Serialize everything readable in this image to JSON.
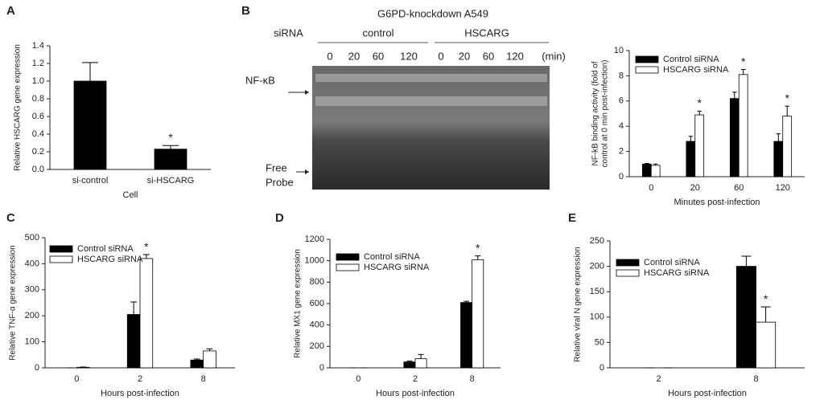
{
  "blot": {
    "panel_label": "B",
    "title": "G6PD-knockdown A549",
    "row_label": "siRNA",
    "groups": [
      "control",
      "HSCARG"
    ],
    "lanes": [
      "0",
      "20",
      "60",
      "120",
      "0",
      "20",
      "60",
      "120"
    ],
    "unit": "(min)",
    "band_label": "NF-κB",
    "probe_label": [
      "Free",
      "Probe"
    ]
  },
  "chart_data": [
    {
      "type": "bar",
      "panel_label": "A",
      "ylabel": "Relative HSCARG gene expression",
      "xlabel": "Cell",
      "categories": [
        "si-control",
        "si-HSCARG"
      ],
      "series": [
        {
          "name": null,
          "color": "#000000",
          "values": [
            1.0,
            0.23
          ],
          "errors": [
            0.21,
            0.04
          ],
          "significance": [
            null,
            "*"
          ]
        }
      ],
      "ylim": [
        0,
        1.4
      ],
      "yticks": [
        {
          "value": 0,
          "label": "0.0"
        },
        {
          "value": 0.2,
          "label": "0.2"
        },
        {
          "value": 0.4,
          "label": "0.4"
        },
        {
          "value": 0.6,
          "label": "0.6"
        },
        {
          "value": 0.8,
          "label": "0.8"
        },
        {
          "value": 1.0,
          "label": "1.0"
        },
        {
          "value": 1.2,
          "label": "1.2"
        },
        {
          "value": 1.4,
          "label": "1.4"
        }
      ],
      "legend": null
    },
    {
      "type": "bar",
      "panel_label": null,
      "ylabel": [
        "NF-kB binding activity (fold of",
        "control at 0 min post-infection)"
      ],
      "xlabel": "Minutes post-infection",
      "categories": [
        "0",
        "20",
        "60",
        "120"
      ],
      "series": [
        {
          "name": "Control siRNA",
          "color": "#000000",
          "values": [
            1.0,
            2.8,
            6.2,
            2.8
          ],
          "errors": [
            0.05,
            0.4,
            0.5,
            0.6
          ],
          "significance": [
            null,
            null,
            null,
            null
          ]
        },
        {
          "name": "HSCARG siRNA",
          "color": "#ffffff",
          "values": [
            0.9,
            4.9,
            8.1,
            4.8
          ],
          "errors": [
            0.1,
            0.3,
            0.4,
            0.8
          ],
          "significance": [
            null,
            "*",
            "*",
            "*"
          ]
        }
      ],
      "ylim": [
        0,
        10
      ],
      "yticks": [
        0,
        2,
        4,
        6,
        8,
        10
      ],
      "legend": "upper left"
    },
    {
      "type": "bar",
      "panel_label": "C",
      "ylabel": "Relative TNF-α gene expression",
      "xlabel": "Hours post-infection",
      "categories": [
        "0",
        "2",
        "8"
      ],
      "series": [
        {
          "name": "Control siRNA",
          "color": "#000000",
          "values": [
            0,
            205,
            30
          ],
          "errors": [
            0,
            48,
            4
          ],
          "significance": [
            null,
            null,
            null
          ]
        },
        {
          "name": "HSCARG siRNA",
          "color": "#ffffff",
          "values": [
            2,
            420,
            65
          ],
          "errors": [
            1,
            15,
            8
          ],
          "significance": [
            null,
            "*",
            null
          ]
        }
      ],
      "ylim": [
        0,
        500
      ],
      "yticks": [
        0,
        100,
        200,
        300,
        400,
        500
      ],
      "legend": "upper left"
    },
    {
      "type": "bar",
      "panel_label": "D",
      "ylabel": "Relative MX1 gene expression",
      "xlabel": "Hours post-infection",
      "categories": [
        "0",
        "2",
        "8"
      ],
      "series": [
        {
          "name": "Control siRNA",
          "color": "#000000",
          "values": [
            0,
            55,
            610
          ],
          "errors": [
            0,
            8,
            12
          ],
          "significance": [
            null,
            null,
            null
          ]
        },
        {
          "name": "HSCARG siRNA",
          "color": "#ffffff",
          "values": [
            0,
            85,
            1010
          ],
          "errors": [
            0,
            40,
            35
          ],
          "significance": [
            null,
            null,
            "*"
          ]
        }
      ],
      "ylim": [
        0,
        1200
      ],
      "yticks": [
        0,
        200,
        400,
        600,
        800,
        1000,
        1200
      ],
      "legend": "upper left"
    },
    {
      "type": "bar",
      "panel_label": "E",
      "ylabel": "Relative viral N gene expression",
      "xlabel": "Hours post-infection",
      "categories": [
        "2",
        "8"
      ],
      "series": [
        {
          "name": "Control siRNA",
          "color": "#000000",
          "values": [
            0,
            200
          ],
          "errors": [
            0,
            20
          ],
          "significance": [
            null,
            null
          ]
        },
        {
          "name": "HSCARG siRNA",
          "color": "#ffffff",
          "values": [
            0,
            90
          ],
          "errors": [
            0,
            30
          ],
          "significance": [
            null,
            "*"
          ]
        }
      ],
      "ylim": [
        0,
        250
      ],
      "yticks": [
        0,
        50,
        100,
        150,
        200,
        250
      ],
      "legend": "upper left"
    }
  ]
}
